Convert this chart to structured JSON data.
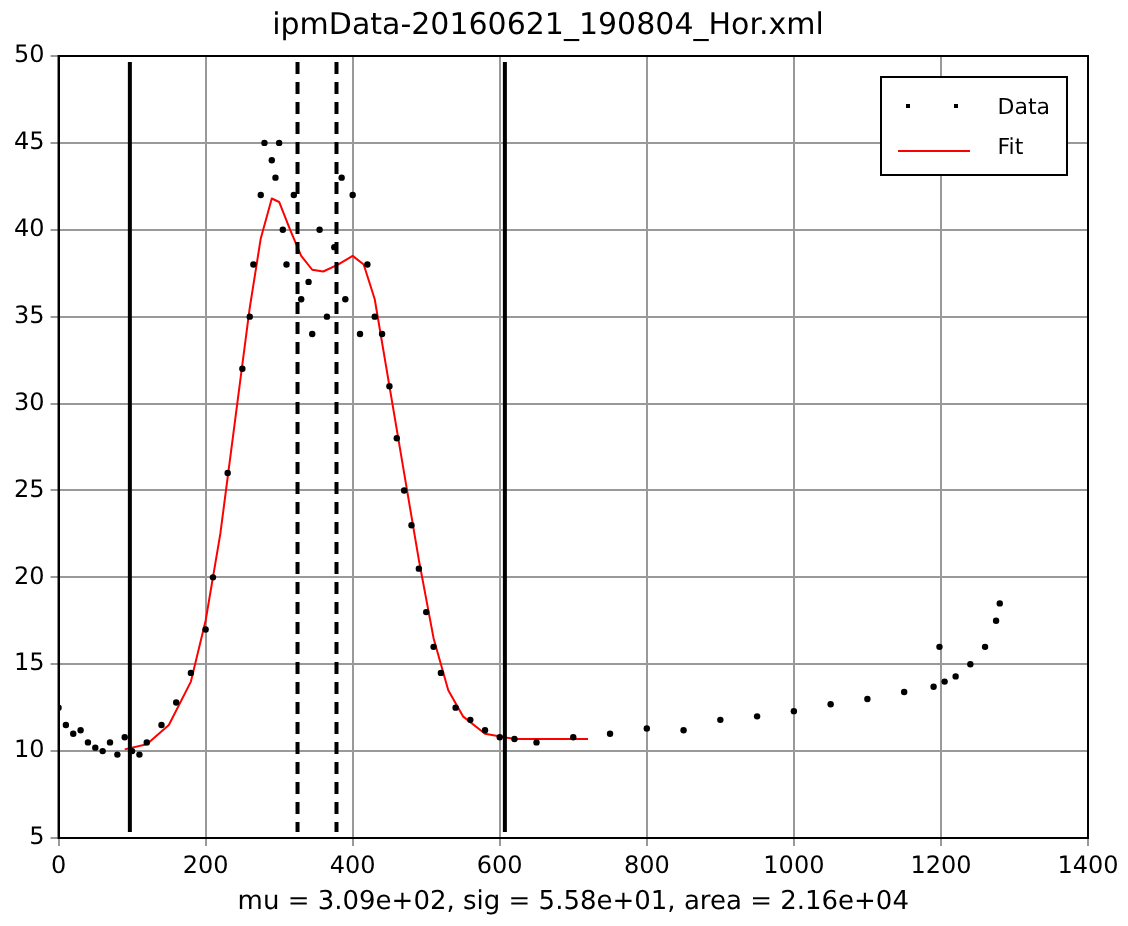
{
  "chart_data": {
    "type": "scatter",
    "title": "ipmData-20160621_190804_Hor.xml",
    "xlabel": "mu = 3.09e+02, sig = 5.58e+01, area = 2.16e+04",
    "xlim": [
      0,
      1400
    ],
    "xticks": [
      0,
      200,
      400,
      600,
      800,
      1000,
      1200,
      1400
    ],
    "ylim": [
      5,
      50
    ],
    "yticks": [
      5,
      10,
      15,
      20,
      25,
      30,
      35,
      40,
      45,
      50
    ],
    "grid": true,
    "legend": "top right",
    "series": [
      {
        "name": "Data",
        "marker": "circle",
        "color": "#000000",
        "x": [
          0,
          10,
          20,
          30,
          40,
          50,
          60,
          70,
          80,
          90,
          100,
          110,
          120,
          140,
          160,
          180,
          200,
          210,
          230,
          250,
          260,
          265,
          275,
          280,
          290,
          295,
          300,
          305,
          310,
          320,
          330,
          340,
          345,
          355,
          365,
          375,
          385,
          390,
          400,
          410,
          420,
          430,
          440,
          450,
          460,
          470,
          480,
          490,
          500,
          510,
          520,
          540,
          560,
          580,
          600,
          620,
          650,
          700,
          750,
          800,
          850,
          900,
          950,
          1000,
          1050,
          1100,
          1150,
          1190,
          1198,
          1205,
          1220,
          1240,
          1260,
          1275,
          1280
        ],
        "values": [
          12.5,
          11.5,
          11,
          11.2,
          10.5,
          10.2,
          10,
          10.5,
          9.8,
          10.8,
          10,
          9.8,
          10.5,
          11.5,
          12.8,
          14.5,
          17,
          20,
          26,
          32,
          35,
          38,
          42,
          45,
          44,
          43,
          45,
          40,
          38,
          42,
          36,
          37,
          34,
          40,
          35,
          39,
          43,
          36,
          42,
          34,
          38,
          35,
          34,
          31,
          28,
          25,
          23,
          20.5,
          18,
          16,
          14.5,
          12.5,
          11.8,
          11.2,
          10.8,
          10.7,
          10.5,
          10.8,
          11,
          11.3,
          11.2,
          11.8,
          12,
          12.3,
          12.7,
          13,
          13.4,
          13.7,
          16,
          14,
          14.3,
          15,
          16,
          17.5,
          18.5
        ]
      },
      {
        "name": "Fit",
        "type": "line",
        "marker": "none",
        "line_style": "solid",
        "color": "#ff0000",
        "x": [
          90,
          120,
          150,
          180,
          200,
          220,
          240,
          260,
          275,
          290,
          300,
          315,
          330,
          345,
          360,
          380,
          400,
          415,
          430,
          450,
          470,
          490,
          510,
          530,
          550,
          580,
          620,
          720
        ],
        "values": [
          10.1,
          10.4,
          11.5,
          14,
          17.5,
          22.5,
          29,
          35.5,
          39.5,
          41.8,
          41.6,
          40,
          38.5,
          37.7,
          37.6,
          38,
          38.5,
          38,
          36,
          31,
          26,
          21,
          16.5,
          13.5,
          12,
          11,
          10.7,
          10.7
        ]
      }
    ],
    "ref_lines": [
      {
        "axis": "x",
        "value": 97,
        "line_style": "solid",
        "color": "#000000"
      },
      {
        "axis": "x",
        "value": 325,
        "line_style": "dashed",
        "color": "#000000"
      },
      {
        "axis": "x",
        "value": 378,
        "line_style": "dashed",
        "color": "#000000"
      },
      {
        "axis": "x",
        "value": 607,
        "line_style": "solid",
        "color": "#000000"
      }
    ]
  }
}
